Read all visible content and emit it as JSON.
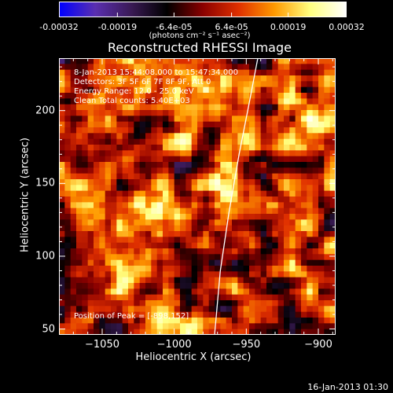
{
  "colorbar": {
    "tick_labels": [
      "-0.00032",
      "-0.00019",
      "-6.4e-05",
      "6.4e-05",
      "0.00019",
      "0.00032"
    ],
    "units_label": "(photons cm⁻² s⁻¹ asec⁻²)",
    "range": [
      -0.00032,
      0.00032
    ],
    "colormap": [
      "#0000ff",
      "#5a2fb0",
      "#3a1a55",
      "#000000",
      "#8a0000",
      "#e03000",
      "#ff9a00",
      "#ffff80",
      "#ffffff"
    ]
  },
  "chart_data": {
    "type": "heatmap",
    "title": "Reconstructed RHESSI Image",
    "xlabel": "Heliocentric X (arcsec)",
    "ylabel": "Heliocentric Y (arcsec)",
    "xlim": [
      -1080,
      -888
    ],
    "ylim": [
      46,
      236
    ],
    "x_ticks": [
      -1050,
      -1000,
      -950,
      -900
    ],
    "x_tick_labels": [
      "−1050",
      "−1000",
      "−950",
      "−900"
    ],
    "y_ticks": [
      50,
      100,
      150,
      200
    ],
    "y_tick_labels": [
      "50",
      "100",
      "150",
      "200"
    ],
    "limb_curve": [
      [
        -972,
        46
      ],
      [
        -968,
        90
      ],
      [
        -962,
        130
      ],
      [
        -955,
        170
      ],
      [
        -948,
        205
      ],
      [
        -942,
        236
      ]
    ],
    "annotations": [
      "8-Jan-2013 15:44:08.000 to 15:47:34.000",
      "Detectors: 3F 5F 6F 7F 8F 9F, Att 0",
      "Energy Range: 12.0 - 25.0 keV",
      "Clean     Total counts: 5.40E+03"
    ],
    "peak_label": "Position of Peak = [-898,152]",
    "peak_position": [
      -898,
      152
    ]
  },
  "footer": {
    "date": "16-Jan-2013 01:30"
  }
}
